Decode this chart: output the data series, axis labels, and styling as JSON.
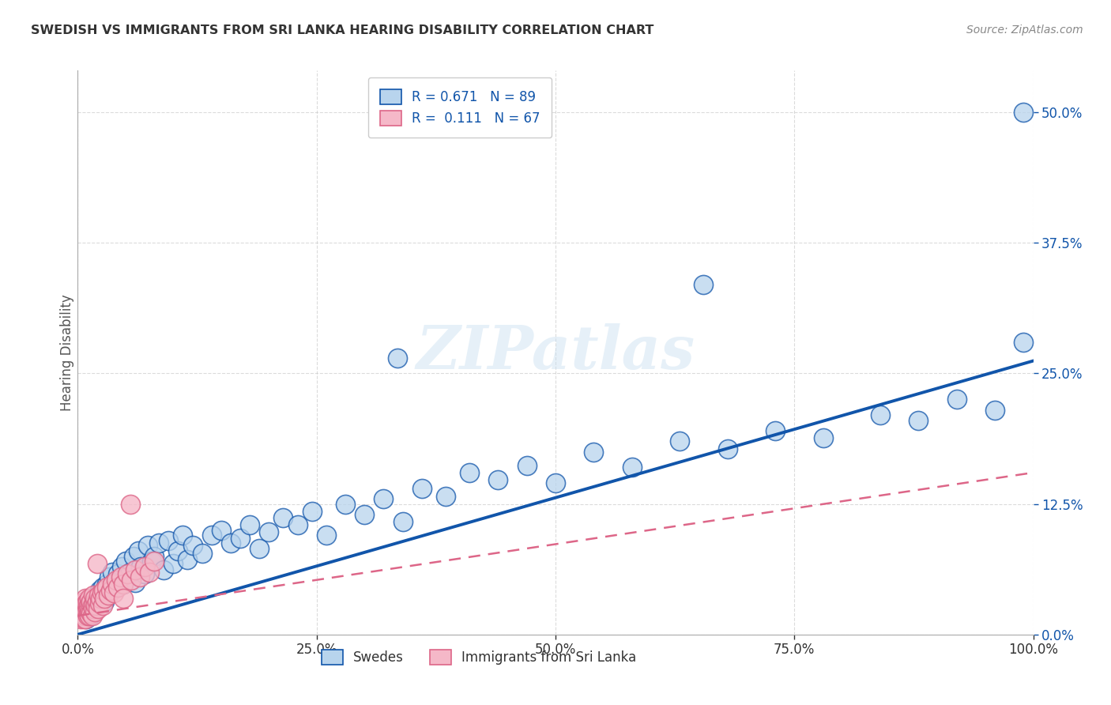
{
  "title": "SWEDISH VS IMMIGRANTS FROM SRI LANKA HEARING DISABILITY CORRELATION CHART",
  "source": "Source: ZipAtlas.com",
  "ylabel": "Hearing Disability",
  "r_swedes": 0.671,
  "n_swedes": 89,
  "r_srilanka": 0.111,
  "n_srilanka": 67,
  "swedes_color": "#b8d4ed",
  "srilanka_color": "#f5b8c8",
  "regression_blue": "#1155aa",
  "regression_pink": "#dd6688",
  "legend_label_swedes": "Swedes",
  "legend_label_srilanka": "Immigrants from Sri Lanka",
  "background_color": "#ffffff",
  "grid_color": "#cccccc",
  "xlim": [
    0.0,
    1.0
  ],
  "ylim": [
    0.0,
    0.54
  ],
  "blue_line_x": [
    0.0,
    1.0
  ],
  "blue_line_y": [
    0.0,
    0.262
  ],
  "pink_line_x": [
    0.0,
    1.0
  ],
  "pink_line_y": [
    0.018,
    0.155
  ],
  "swedes_x": [
    0.005,
    0.007,
    0.008,
    0.009,
    0.01,
    0.011,
    0.012,
    0.013,
    0.014,
    0.015,
    0.016,
    0.017,
    0.018,
    0.019,
    0.02,
    0.021,
    0.022,
    0.023,
    0.024,
    0.025,
    0.026,
    0.027,
    0.028,
    0.03,
    0.032,
    0.033,
    0.035,
    0.036,
    0.038,
    0.04,
    0.042,
    0.044,
    0.046,
    0.048,
    0.05,
    0.052,
    0.055,
    0.058,
    0.06,
    0.063,
    0.066,
    0.07,
    0.073,
    0.077,
    0.08,
    0.085,
    0.09,
    0.095,
    0.1,
    0.105,
    0.11,
    0.115,
    0.12,
    0.13,
    0.14,
    0.15,
    0.16,
    0.17,
    0.18,
    0.19,
    0.2,
    0.215,
    0.23,
    0.245,
    0.26,
    0.28,
    0.3,
    0.32,
    0.34,
    0.36,
    0.385,
    0.41,
    0.44,
    0.47,
    0.5,
    0.54,
    0.58,
    0.63,
    0.68,
    0.73,
    0.78,
    0.84,
    0.88,
    0.92,
    0.96,
    0.99,
    0.99,
    0.655,
    0.335
  ],
  "swedes_y": [
    0.02,
    0.018,
    0.022,
    0.015,
    0.025,
    0.028,
    0.02,
    0.018,
    0.03,
    0.022,
    0.035,
    0.028,
    0.025,
    0.032,
    0.038,
    0.03,
    0.035,
    0.042,
    0.028,
    0.04,
    0.045,
    0.038,
    0.032,
    0.048,
    0.04,
    0.055,
    0.042,
    0.06,
    0.05,
    0.045,
    0.058,
    0.052,
    0.065,
    0.048,
    0.07,
    0.055,
    0.06,
    0.075,
    0.05,
    0.08,
    0.065,
    0.058,
    0.085,
    0.07,
    0.075,
    0.088,
    0.062,
    0.09,
    0.068,
    0.08,
    0.095,
    0.072,
    0.085,
    0.078,
    0.095,
    0.1,
    0.088,
    0.092,
    0.105,
    0.082,
    0.098,
    0.112,
    0.105,
    0.118,
    0.095,
    0.125,
    0.115,
    0.13,
    0.108,
    0.14,
    0.132,
    0.155,
    0.148,
    0.162,
    0.145,
    0.175,
    0.16,
    0.185,
    0.178,
    0.195,
    0.188,
    0.21,
    0.205,
    0.225,
    0.215,
    0.28,
    0.5,
    0.335,
    0.265
  ],
  "srilanka_x": [
    0.002,
    0.003,
    0.003,
    0.004,
    0.004,
    0.005,
    0.005,
    0.006,
    0.006,
    0.006,
    0.007,
    0.007,
    0.007,
    0.008,
    0.008,
    0.008,
    0.008,
    0.009,
    0.009,
    0.01,
    0.01,
    0.01,
    0.011,
    0.011,
    0.012,
    0.012,
    0.012,
    0.013,
    0.013,
    0.014,
    0.014,
    0.015,
    0.015,
    0.016,
    0.016,
    0.017,
    0.018,
    0.018,
    0.019,
    0.02,
    0.021,
    0.022,
    0.023,
    0.024,
    0.025,
    0.026,
    0.027,
    0.028,
    0.03,
    0.032,
    0.034,
    0.036,
    0.038,
    0.04,
    0.042,
    0.045,
    0.048,
    0.052,
    0.056,
    0.06,
    0.065,
    0.07,
    0.075,
    0.08,
    0.055,
    0.048,
    0.02
  ],
  "srilanka_y": [
    0.018,
    0.022,
    0.015,
    0.025,
    0.018,
    0.02,
    0.028,
    0.015,
    0.022,
    0.03,
    0.018,
    0.025,
    0.032,
    0.02,
    0.028,
    0.015,
    0.035,
    0.022,
    0.03,
    0.018,
    0.025,
    0.032,
    0.02,
    0.028,
    0.018,
    0.025,
    0.035,
    0.022,
    0.03,
    0.02,
    0.032,
    0.018,
    0.028,
    0.025,
    0.038,
    0.03,
    0.022,
    0.035,
    0.028,
    0.032,
    0.025,
    0.038,
    0.03,
    0.035,
    0.04,
    0.028,
    0.042,
    0.035,
    0.045,
    0.038,
    0.042,
    0.048,
    0.04,
    0.052,
    0.045,
    0.055,
    0.048,
    0.058,
    0.052,
    0.062,
    0.055,
    0.065,
    0.06,
    0.07,
    0.125,
    0.035,
    0.068
  ]
}
